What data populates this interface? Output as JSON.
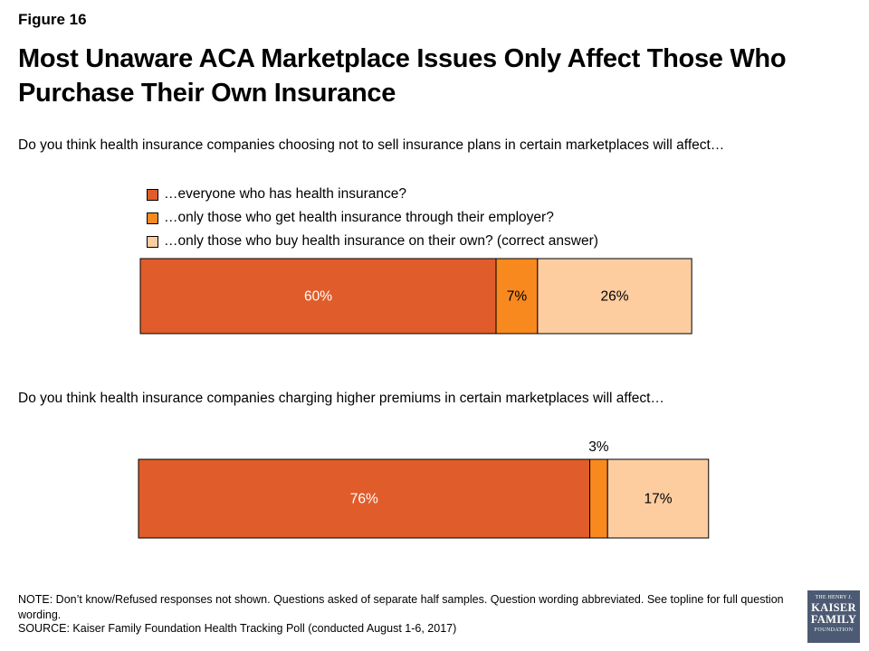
{
  "figure_label": "Figure 16",
  "title": "Most Unaware ACA Marketplace Issues Only Affect Those Who Purchase Their Own Insurance",
  "legend": [
    {
      "label": "…everyone who has health insurance?",
      "color": "#e05c2a"
    },
    {
      "label": "…only those who get health insurance through their employer?",
      "color": "#f7891f"
    },
    {
      "label": "…only those who buy health insurance on their own? (correct answer)",
      "color": "#fdcda0"
    }
  ],
  "chart_data": [
    {
      "type": "bar",
      "orientation": "horizontal",
      "stacked": true,
      "question": "Do you think health insurance companies choosing not to sell insurance plans in certain marketplaces will affect…",
      "values": [
        60,
        7,
        26
      ],
      "labels": [
        "60%",
        "7%",
        "26%"
      ]
    },
    {
      "type": "bar",
      "orientation": "horizontal",
      "stacked": true,
      "question": "Do you think health insurance companies charging higher premiums in certain marketplaces will affect…",
      "values": [
        76,
        3,
        17
      ],
      "labels": [
        "76%",
        "3%",
        "17%"
      ]
    }
  ],
  "note": "NOTE: Don’t know/Refused responses not shown. Questions asked of separate half samples. Question wording abbreviated. See topline for full question wording.",
  "source": "SOURCE: Kaiser Family Foundation Health Tracking Poll (conducted August 1-6, 2017)",
  "logo": {
    "line1": "THE HENRY J.",
    "line2": "KAISER",
    "line3": "FAMILY",
    "line4": "FOUNDATION"
  }
}
